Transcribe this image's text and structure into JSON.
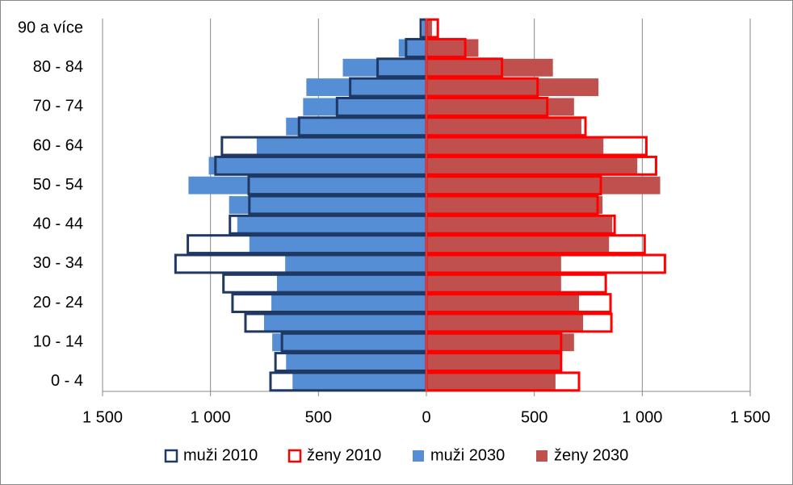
{
  "chart_data": {
    "type": "bar",
    "orientation": "horizontal",
    "categories": [
      "0 - 4",
      null,
      "10 - 14",
      null,
      "20 - 24",
      null,
      "30 - 34",
      null,
      "40 - 44",
      null,
      "50 - 54",
      null,
      "60 - 64",
      null,
      "70 - 74",
      null,
      "80 - 84",
      null,
      "90 a více"
    ],
    "series": [
      {
        "name": "muži 2010",
        "color": "#1f3864",
        "style": "outline",
        "values": [
          -722,
          -699,
          -669,
          -838,
          -898,
          -940,
          -1162,
          -1105,
          -910,
          -820,
          -823,
          -977,
          -947,
          -590,
          -414,
          -353,
          -226,
          -94,
          -26
        ]
      },
      {
        "name": "ženy 2010",
        "color": "#ff0000",
        "style": "outline",
        "values": [
          707,
          624,
          624,
          857,
          853,
          831,
          1105,
          1011,
          872,
          793,
          808,
          1064,
          1019,
          737,
          560,
          515,
          350,
          180,
          53
        ]
      },
      {
        "name": "muži 2030",
        "color": "#558ed5",
        "style": "fill",
        "values": [
          -620,
          -650,
          -714,
          -752,
          -718,
          -692,
          -654,
          -820,
          -876,
          -914,
          -1102,
          -1008,
          -786,
          -650,
          -571,
          -556,
          -387,
          -128,
          -19
        ]
      },
      {
        "name": "ženy 2030",
        "color": "#c0504d",
        "style": "fill",
        "values": [
          598,
          624,
          684,
          726,
          707,
          624,
          624,
          846,
          861,
          816,
          1083,
          977,
          820,
          718,
          684,
          797,
          586,
          241,
          26
        ]
      }
    ],
    "xlim": [
      -1500,
      1500
    ],
    "xticks": [
      {
        "value": -1500,
        "label": "1 500"
      },
      {
        "value": -1000,
        "label": "1 000"
      },
      {
        "value": -500,
        "label": "500"
      },
      0,
      500,
      {
        "value": 1000,
        "label": "1 000"
      },
      {
        "value": 1500,
        "label": "1 500"
      }
    ],
    "grid": true,
    "legend": "bottom"
  }
}
